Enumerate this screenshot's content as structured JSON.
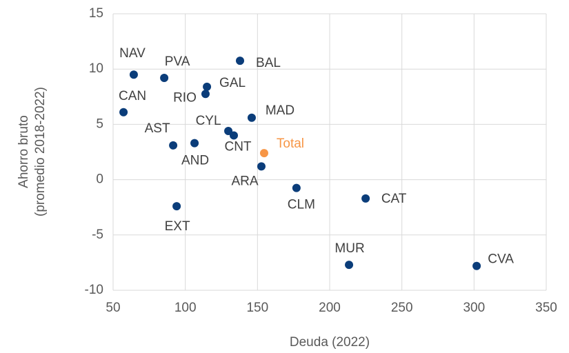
{
  "chart_data": {
    "type": "scatter",
    "x_label": "Deuda (2022)",
    "y_label": [
      "Ahorro bruto",
      "(promedio 2018-2022)"
    ],
    "labels": [
      "NAV",
      "PVA",
      "BAL",
      "GAL",
      "RIO",
      "CAN",
      "MAD",
      "CYL",
      "CNT",
      "AST",
      "AND",
      "Total",
      "ARA",
      "CLM",
      "CAT",
      "EXT",
      "MUR",
      "CVA"
    ],
    "x": [
      64.3,
      85.4,
      137.9,
      115,
      114,
      57.2,
      146,
      129.8,
      133.6,
      91.6,
      106.4,
      154.6,
      152.7,
      177,
      224.9,
      94,
      213.4,
      301.8
    ],
    "y": [
      9.5,
      9.2,
      10.75,
      8.4,
      7.75,
      6.1,
      5.6,
      4.4,
      4.0,
      3.1,
      3.3,
      2.4,
      1.2,
      -0.75,
      -1.7,
      -2.4,
      -7.7,
      -7.8
    ],
    "colors": [
      "#0b3d7a",
      "#0b3d7a",
      "#0b3d7a",
      "#0b3d7a",
      "#0b3d7a",
      "#0b3d7a",
      "#0b3d7a",
      "#0b3d7a",
      "#0b3d7a",
      "#0b3d7a",
      "#0b3d7a",
      "#f79646",
      "#0b3d7a",
      "#0b3d7a",
      "#0b3d7a",
      "#0b3d7a",
      "#0b3d7a",
      "#0b3d7a"
    ],
    "color": "#0b3d7a",
    "label_color": "#404040",
    "xlim": [
      50,
      350
    ],
    "xticks": [
      50,
      100,
      150,
      200,
      250,
      300,
      350
    ],
    "ylim": [
      -10,
      15
    ],
    "yticks": [
      -10,
      -5,
      0,
      5,
      10,
      15
    ],
    "grid": true
  }
}
